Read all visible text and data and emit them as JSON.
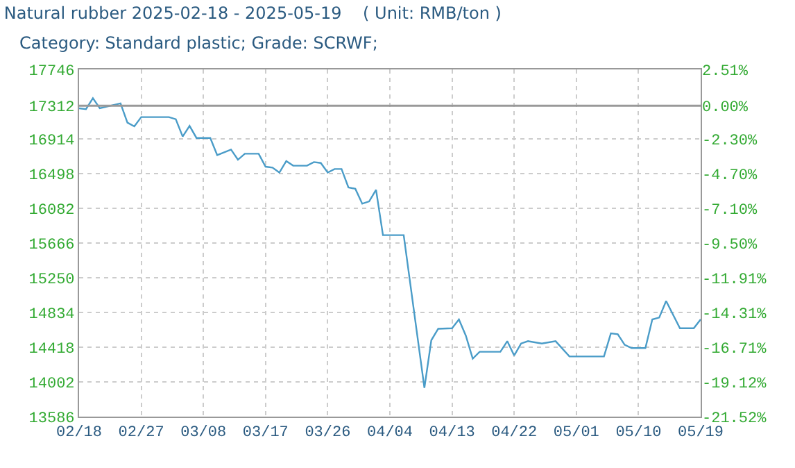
{
  "chart_data": {
    "type": "line",
    "title": "Natural rubber 2025-02-18 - 2025-05-19    ( Unit: RMB/ton )",
    "subtitle": "Category: Standard plastic; Grade: SCRWF;",
    "x": [
      "2025-02-18",
      "2025-02-19",
      "2025-02-20",
      "2025-02-21",
      "2025-02-24",
      "2025-02-25",
      "2025-02-26",
      "2025-02-27",
      "2025-03-03",
      "2025-03-04",
      "2025-03-05",
      "2025-03-06",
      "2025-03-07",
      "2025-03-09",
      "2025-03-10",
      "2025-03-12",
      "2025-03-13",
      "2025-03-14",
      "2025-03-16",
      "2025-03-17",
      "2025-03-18",
      "2025-03-19",
      "2025-03-20",
      "2025-03-21",
      "2025-03-23",
      "2025-03-24",
      "2025-03-25",
      "2025-03-26",
      "2025-03-27",
      "2025-03-28",
      "2025-03-29",
      "2025-03-30",
      "2025-03-31",
      "2025-04-01",
      "2025-04-02",
      "2025-04-03",
      "2025-04-06",
      "2025-04-09",
      "2025-04-10",
      "2025-04-11",
      "2025-04-13",
      "2025-04-14",
      "2025-04-15",
      "2025-04-16",
      "2025-04-17",
      "2025-04-20",
      "2025-04-21",
      "2025-04-22",
      "2025-04-23",
      "2025-04-24",
      "2025-04-26",
      "2025-04-28",
      "2025-04-30",
      "2025-05-05",
      "2025-05-06",
      "2025-05-07",
      "2025-05-08",
      "2025-05-09",
      "2025-05-11",
      "2025-05-12",
      "2025-05-13",
      "2025-05-14",
      "2025-05-16",
      "2025-05-18",
      "2025-05-19"
    ],
    "series": [
      {
        "color": "#4a9cc8",
        "values": [
          17280,
          17270,
          17402,
          17280,
          17340,
          17109,
          17064,
          17175,
          17175,
          17150,
          16942,
          17069,
          16925,
          16925,
          16719,
          16786,
          16664,
          16736,
          16736,
          16581,
          16570,
          16510,
          16648,
          16593,
          16593,
          16636,
          16625,
          16510,
          16553,
          16553,
          16332,
          16316,
          16137,
          16165,
          16304,
          15761,
          15761,
          13930,
          14501,
          14639,
          14645,
          14751,
          14556,
          14280,
          14363,
          14363,
          14490,
          14318,
          14462,
          14490,
          14462,
          14490,
          14307,
          14307,
          14584,
          14573,
          14446,
          14407,
          14407,
          14751,
          14773,
          14972,
          14645,
          14645,
          14751
        ]
      }
    ],
    "xlim": [
      "2025-02-18",
      "2025-05-19"
    ],
    "xticks": [
      {
        "value": "2025-02-18",
        "label": "02/18"
      },
      {
        "value": "2025-02-27",
        "label": "02/27"
      },
      {
        "value": "2025-03-08",
        "label": "03/08"
      },
      {
        "value": "2025-03-17",
        "label": "03/17"
      },
      {
        "value": "2025-03-26",
        "label": "03/26"
      },
      {
        "value": "2025-04-04",
        "label": "04/04"
      },
      {
        "value": "2025-04-13",
        "label": "04/13"
      },
      {
        "value": "2025-04-22",
        "label": "04/22"
      },
      {
        "value": "2025-05-01",
        "label": "05/01"
      },
      {
        "value": "2025-05-10",
        "label": "05/10"
      },
      {
        "value": "2025-05-19",
        "label": "05/19"
      }
    ],
    "ylim": [
      13586,
      17746
    ],
    "yticks": [
      13586,
      14002,
      14418,
      14834,
      15250,
      15666,
      16082,
      16498,
      16914,
      17312,
      17746
    ],
    "y2lim": [
      -21.52,
      2.51
    ],
    "y2ticks": [
      {
        "value": -21.52,
        "label": "-21.52%"
      },
      {
        "value": -19.12,
        "label": "-19.12%"
      },
      {
        "value": -16.71,
        "label": "-16.71%"
      },
      {
        "value": -14.31,
        "label": "-14.31%"
      },
      {
        "value": -11.91,
        "label": "-11.91%"
      },
      {
        "value": -9.5,
        "label": "-9.50%"
      },
      {
        "value": -7.1,
        "label": "-7.10%"
      },
      {
        "value": -4.7,
        "label": "-4.70%"
      },
      {
        "value": -2.3,
        "label": "-2.30%"
      },
      {
        "value": 0,
        "label": "0.00%"
      },
      {
        "value": 2.51,
        "label": "2.51%"
      }
    ],
    "ref_lines": [
      {
        "axis": "y",
        "value": 17312,
        "color": "#999999"
      }
    ],
    "grid": true,
    "marker": "none",
    "line_style": "solid"
  }
}
